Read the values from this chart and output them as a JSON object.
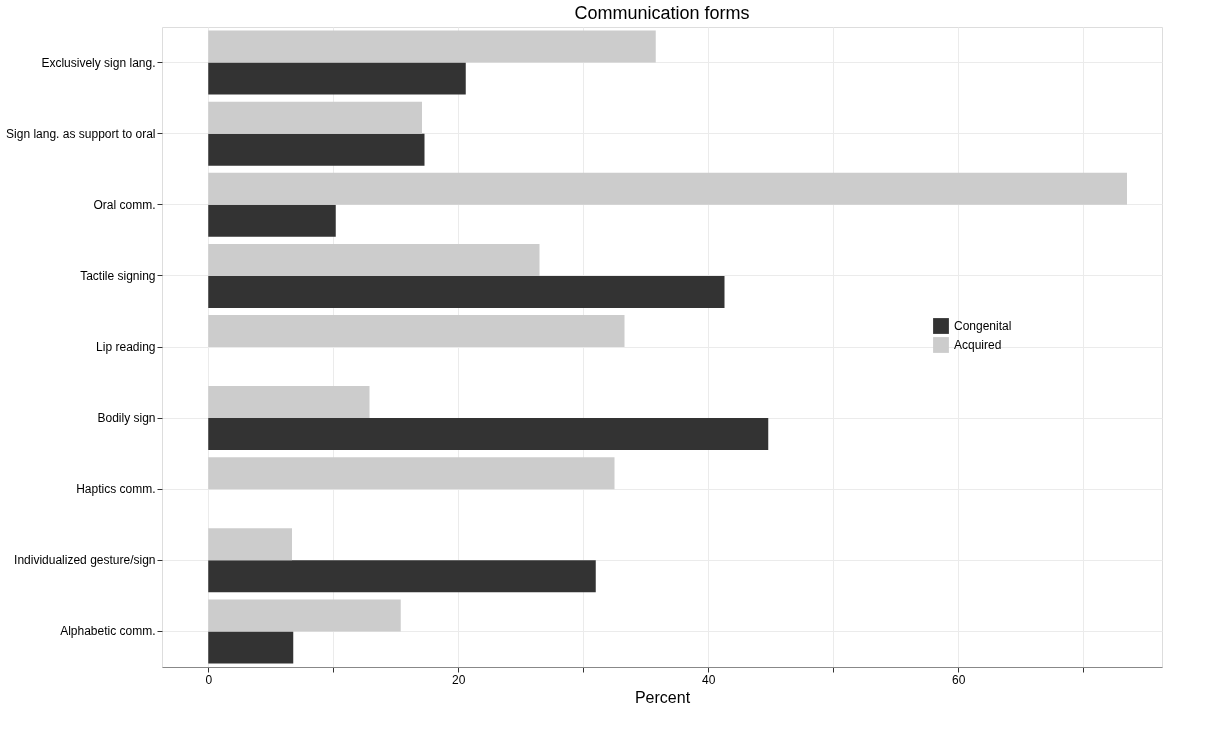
{
  "chart_data": {
    "type": "bar",
    "orientation": "horizontal",
    "title": "Communication forms",
    "xlabel": "Percent",
    "categories": [
      "Exclusively sign lang.",
      "Sign lang. as support to oral",
      "Oral comm.",
      "Tactile signing",
      "Lip reading",
      "Bodily sign",
      "Haptics comm.",
      "Individualized gesture/sign",
      "Alphabetic comm."
    ],
    "series": [
      {
        "name": "Congenital",
        "color": "#333333",
        "values": [
          20.6,
          17.3,
          10.2,
          41.3,
          null,
          44.8,
          null,
          31.0,
          6.8
        ]
      },
      {
        "name": "Acquired",
        "color": "#cccccc",
        "values": [
          35.8,
          17.1,
          73.5,
          26.5,
          33.3,
          12.9,
          32.5,
          6.7,
          15.4
        ]
      }
    ],
    "xlim": [
      -3.7,
      76.3
    ],
    "xticks": [
      0,
      {
        "value": 10,
        "label": null
      },
      20,
      {
        "value": 30,
        "label": null
      },
      40,
      {
        "value": 50,
        "label": null
      },
      60,
      {
        "value": 70,
        "label": null
      }
    ],
    "grid": true,
    "legend": "right"
  }
}
